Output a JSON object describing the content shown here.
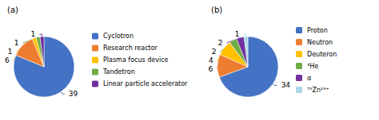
{
  "chart_data": [
    {
      "type": "pie",
      "title": "(a)",
      "categories": [
        "Cyclotron",
        "Research reactor",
        "Plasma focus device",
        "Tandetron",
        "Linear particle accelerator"
      ],
      "values": [
        39,
        6,
        1,
        1,
        1
      ],
      "colors": [
        "#4472c4",
        "#ed7d31",
        "#ffc000",
        "#70ad47",
        "#7030a0"
      ],
      "legend": "right",
      "data_labels": true
    },
    {
      "type": "pie",
      "title": "(b)",
      "categories": [
        "Proton",
        "Neutron",
        "Deuteron",
        "³He",
        "α",
        "⁷⁰Zn¹⁹⁺"
      ],
      "values": [
        34,
        6,
        4,
        2,
        2,
        1
      ],
      "colors": [
        "#4472c4",
        "#ed7d31",
        "#ffc000",
        "#70ad47",
        "#7030a0",
        "#add8e6"
      ],
      "legend": "right",
      "data_labels": true
    }
  ]
}
